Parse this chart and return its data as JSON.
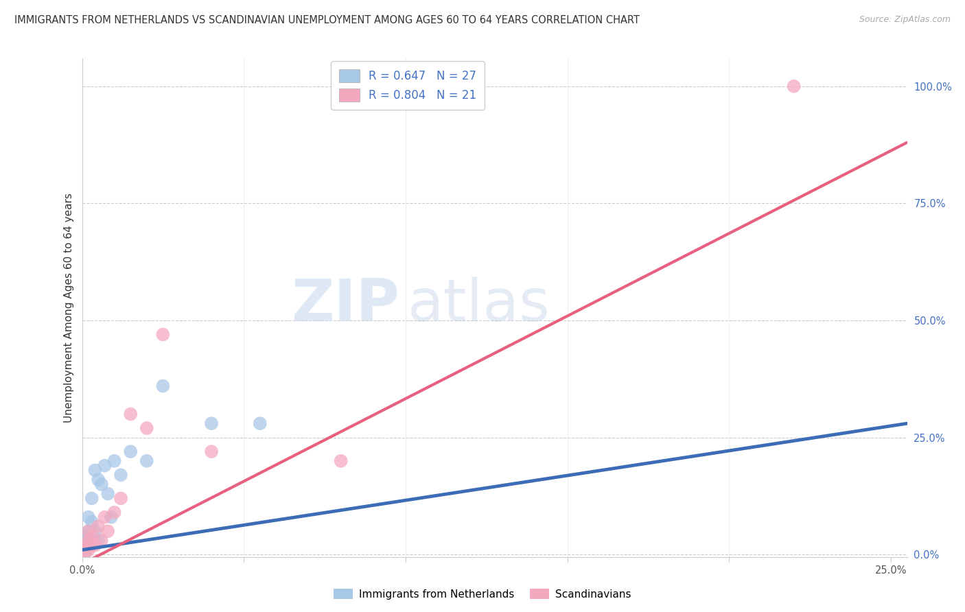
{
  "title": "IMMIGRANTS FROM NETHERLANDS VS SCANDINAVIAN UNEMPLOYMENT AMONG AGES 60 TO 64 YEARS CORRELATION CHART",
  "source": "Source: ZipAtlas.com",
  "ylabel": "Unemployment Among Ages 60 to 64 years",
  "xlim": [
    0.0,
    0.255
  ],
  "ylim": [
    -0.005,
    1.06
  ],
  "xticks": [
    0.0,
    0.05,
    0.1,
    0.15,
    0.2,
    0.25
  ],
  "yticks_right": [
    0.0,
    0.25,
    0.5,
    0.75,
    1.0
  ],
  "ytick_labels_right": [
    "0.0%",
    "25.0%",
    "50.0%",
    "75.0%",
    "100.0%"
  ],
  "xtick_labels": [
    "0.0%",
    "",
    "",
    "",
    "",
    "25.0%"
  ],
  "color_blue": "#A8C8E8",
  "color_pink": "#F4A8BE",
  "color_blue_line": "#3B6CB5",
  "color_pink_line": "#E86080",
  "color_blue_dash": "#A0B8D8",
  "color_axis_right": "#4472C4",
  "color_axis_text": "#555555",
  "legend_label1": "Immigrants from Netherlands",
  "legend_label2": "Scandinavians",
  "blue_scatter_x": [
    0.0005,
    0.0008,
    0.001,
    0.001,
    0.0012,
    0.0015,
    0.002,
    0.002,
    0.002,
    0.003,
    0.003,
    0.003,
    0.004,
    0.004,
    0.005,
    0.005,
    0.006,
    0.007,
    0.008,
    0.009,
    0.01,
    0.012,
    0.015,
    0.02,
    0.025,
    0.04,
    0.055
  ],
  "blue_scatter_y": [
    0.01,
    0.005,
    0.02,
    0.03,
    0.01,
    0.04,
    0.02,
    0.08,
    0.05,
    0.02,
    0.12,
    0.07,
    0.18,
    0.05,
    0.16,
    0.03,
    0.15,
    0.19,
    0.13,
    0.08,
    0.2,
    0.17,
    0.22,
    0.2,
    0.36,
    0.28,
    0.28
  ],
  "pink_scatter_x": [
    0.0005,
    0.001,
    0.001,
    0.002,
    0.002,
    0.002,
    0.003,
    0.003,
    0.004,
    0.005,
    0.006,
    0.007,
    0.008,
    0.01,
    0.012,
    0.015,
    0.02,
    0.025,
    0.04,
    0.08,
    0.22
  ],
  "pink_scatter_y": [
    0.01,
    0.005,
    0.02,
    0.03,
    0.01,
    0.05,
    0.02,
    0.04,
    0.02,
    0.06,
    0.03,
    0.08,
    0.05,
    0.09,
    0.12,
    0.3,
    0.27,
    0.47,
    0.22,
    0.2,
    1.0
  ],
  "blue_line_x0": 0.0,
  "blue_line_x1": 0.255,
  "blue_line_y0": 0.01,
  "blue_line_y1": 0.28,
  "pink_line_x0": 0.0,
  "pink_line_x1": 0.255,
  "pink_line_y0": -0.02,
  "pink_line_y1": 0.88
}
